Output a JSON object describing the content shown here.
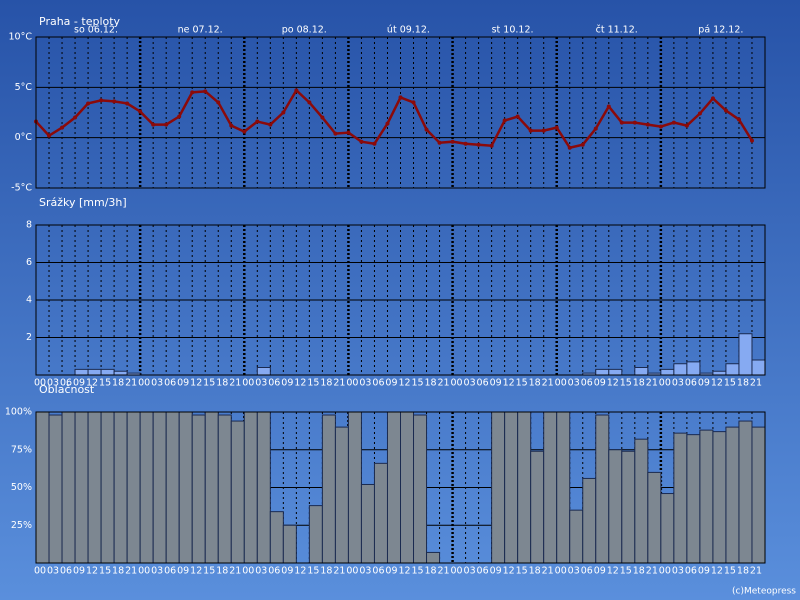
{
  "chart_data": [
    {
      "type": "line",
      "title": "Praha - teploty",
      "day_labels": [
        "so 06.12.",
        "ne 07.12.",
        "po 08.12.",
        "út 09.12.",
        "st 10.12.",
        "čt 11.12.",
        "pá 12.12."
      ],
      "series": [
        {
          "name": "teplota",
          "color": "#8b0a0a",
          "values": [
            1.6,
            0.2,
            1.0,
            2.0,
            3.4,
            3.7,
            3.6,
            3.4,
            2.6,
            1.3,
            1.3,
            2.1,
            4.5,
            4.6,
            3.5,
            1.2,
            0.6,
            1.6,
            1.3,
            2.5,
            4.7,
            3.5,
            2.0,
            0.4,
            0.5,
            -0.4,
            -0.6,
            1.4,
            4.0,
            3.5,
            0.8,
            -0.5,
            -0.4,
            -0.6,
            -0.7,
            -0.8,
            1.7,
            2.1,
            0.7,
            0.7,
            1.0,
            -1.0,
            -0.7,
            0.9,
            3.1,
            1.5,
            1.5,
            1.3,
            1.1,
            1.5,
            1.2,
            2.4,
            3.9,
            2.7,
            1.8,
            -0.3
          ]
        }
      ],
      "ylim": [
        -5,
        10
      ],
      "yticks": [
        {
          "value": -5,
          "label": "-5°C"
        },
        {
          "value": 0,
          "label": "0°C"
        },
        {
          "value": 5,
          "label": "5°C"
        },
        {
          "value": 10,
          "label": "10°C"
        }
      ],
      "grid": true
    },
    {
      "type": "bar",
      "title": "Srážky [mm/3h]",
      "categories": [
        "00",
        "03",
        "06",
        "09",
        "12",
        "15",
        "18",
        "21",
        "00",
        "03",
        "06",
        "09",
        "12",
        "15",
        "18",
        "21",
        "00",
        "03",
        "06",
        "09",
        "12",
        "15",
        "18",
        "21",
        "00",
        "03",
        "06",
        "09",
        "12",
        "15",
        "18",
        "21",
        "00",
        "03",
        "06",
        "09",
        "12",
        "15",
        "18",
        "21",
        "00",
        "03",
        "06",
        "09",
        "12",
        "15",
        "18",
        "21",
        "00",
        "03",
        "06",
        "09",
        "12",
        "15",
        "18",
        "21"
      ],
      "color": "#86aaf2",
      "values": [
        0,
        0,
        0,
        0.3,
        0.3,
        0.3,
        0.2,
        0.1,
        0,
        0,
        0,
        0,
        0,
        0,
        0,
        0,
        0,
        0.4,
        0,
        0,
        0,
        0,
        0,
        0,
        0,
        0,
        0,
        0,
        0,
        0,
        0,
        0,
        0,
        0,
        0,
        0,
        0,
        0,
        0,
        0,
        0,
        0,
        0.1,
        0.3,
        0.3,
        0,
        0.4,
        0.1,
        0.3,
        0.6,
        0.7,
        0.1,
        0.2,
        0.6,
        2.2,
        0.8
      ],
      "ylim": [
        0,
        8
      ],
      "yticks": [
        2,
        4,
        6,
        8
      ],
      "grid": true
    },
    {
      "type": "bar",
      "title": "Oblačnost",
      "categories": [
        "00",
        "03",
        "06",
        "09",
        "12",
        "15",
        "18",
        "21",
        "00",
        "03",
        "06",
        "09",
        "12",
        "15",
        "18",
        "21",
        "00",
        "03",
        "06",
        "09",
        "12",
        "15",
        "18",
        "21",
        "00",
        "03",
        "06",
        "09",
        "12",
        "15",
        "18",
        "21",
        "00",
        "03",
        "06",
        "09",
        "12",
        "15",
        "18",
        "21",
        "00",
        "03",
        "06",
        "09",
        "12",
        "15",
        "18",
        "21",
        "00",
        "03",
        "06",
        "09",
        "12",
        "15",
        "18",
        "21"
      ],
      "color": "#7d8791",
      "values": [
        100,
        98,
        100,
        100,
        100,
        100,
        100,
        100,
        100,
        100,
        100,
        100,
        98,
        100,
        98,
        94,
        100,
        100,
        34,
        25,
        0,
        38,
        98,
        90,
        100,
        52,
        66,
        100,
        100,
        98,
        7,
        0,
        0,
        0,
        0,
        100,
        100,
        100,
        74,
        100,
        100,
        35,
        56,
        98,
        75,
        74,
        82,
        60,
        46,
        86,
        85,
        88,
        87,
        90,
        94,
        90
      ],
      "ylim": [
        0,
        100
      ],
      "yticks": [
        {
          "value": 25,
          "label": "25%"
        },
        {
          "value": 50,
          "label": "50%"
        },
        {
          "value": 75,
          "label": "75%"
        },
        {
          "value": 100,
          "label": "100%"
        }
      ],
      "grid": true
    }
  ],
  "footer": "(c)Meteopress"
}
